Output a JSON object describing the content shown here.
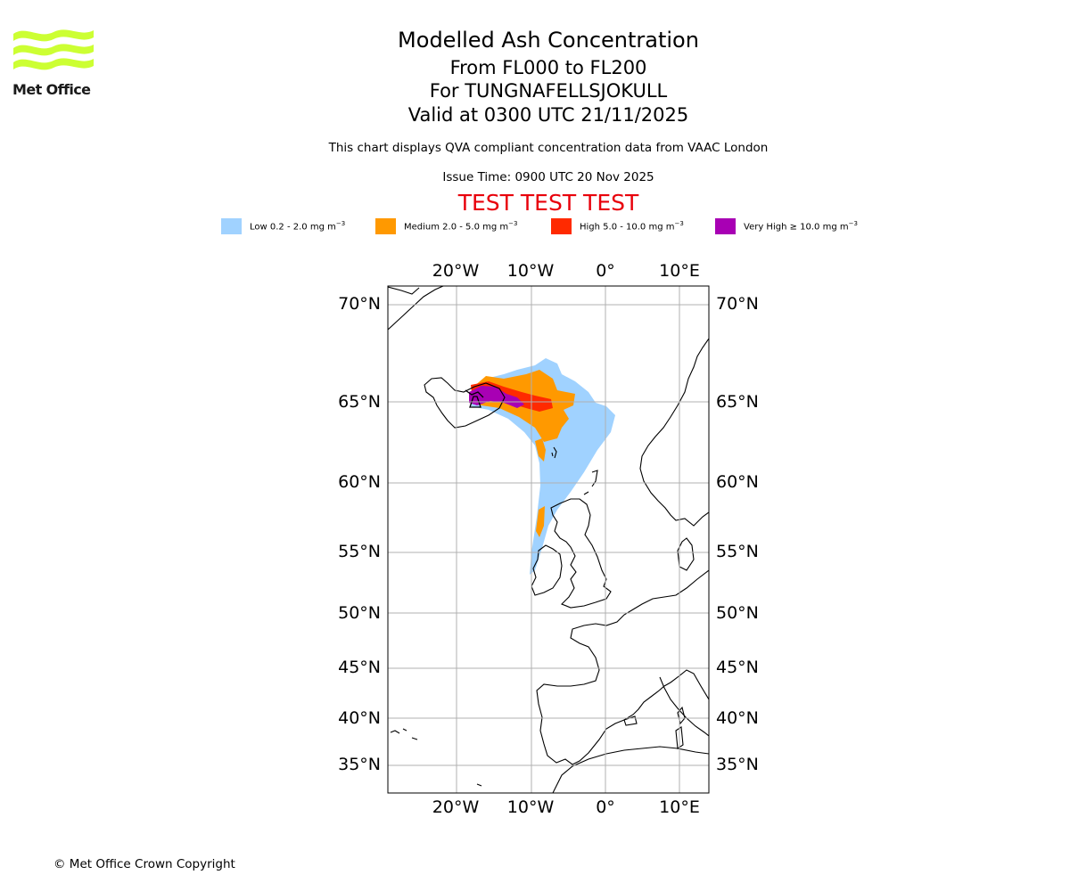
{
  "header": {
    "title": "Modelled Ash Concentration",
    "levels": "From FL000 to FL200",
    "volcano": "For TUNGNAFELLSJOKULL",
    "valid": "Valid at 0300 UTC 21/11/2025",
    "description": "This chart displays QVA compliant concentration data from VAAC London",
    "issue_time": "Issue Time: 0900 UTC 20 Nov 2025",
    "test_banner": "TEST TEST TEST"
  },
  "logo": {
    "text": "Met Office",
    "color": "#ccff33"
  },
  "legend": [
    {
      "label": "Low 0.2 - 2.0 mg m",
      "color": "#a0d2ff"
    },
    {
      "label": "Medium 2.0 - 5.0 mg m",
      "color": "#ff9900"
    },
    {
      "label": "High 5.0 - 10.0 mg m",
      "color": "#ff2a00"
    },
    {
      "label": "Very High ≥ 10.0 mg m",
      "color": "#a800b4"
    }
  ],
  "legend_unit_exponent": "−3",
  "map": {
    "lon_ticks": [
      "20°W",
      "10°W",
      "0°",
      "10°E"
    ],
    "lat_ticks": [
      "70°N",
      "65°N",
      "60°N",
      "55°N",
      "50°N",
      "45°N",
      "40°N",
      "35°N"
    ]
  },
  "footer": {
    "copyright": "© Met Office Crown Copyright"
  }
}
